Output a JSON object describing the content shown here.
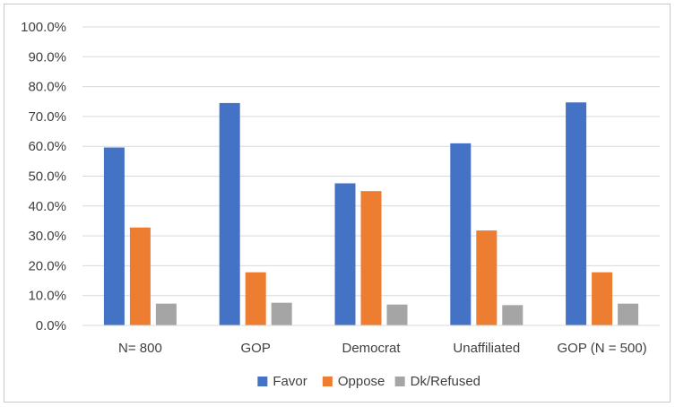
{
  "chart_data": {
    "type": "bar",
    "categories": [
      "N= 800",
      "GOP",
      "Democrat",
      "Unaffiliated",
      "GOP (N = 500)"
    ],
    "series": [
      {
        "name": "Favor",
        "color": "#4472c4",
        "values": [
          59.6,
          74.5,
          47.6,
          61.0,
          74.7
        ]
      },
      {
        "name": "Oppose",
        "color": "#ed7d31",
        "values": [
          32.8,
          17.8,
          45.0,
          31.8,
          17.8
        ]
      },
      {
        "name": "Dk/Refused",
        "color": "#a5a5a5",
        "values": [
          7.3,
          7.6,
          7.0,
          6.8,
          7.3
        ]
      }
    ],
    "y_ticks": [
      "0.0%",
      "10.0%",
      "20.0%",
      "30.0%",
      "40.0%",
      "50.0%",
      "60.0%",
      "70.0%",
      "80.0%",
      "90.0%",
      "100.0%"
    ],
    "ylim": [
      0,
      100
    ],
    "grid": true,
    "legend_position": "bottom",
    "title": "",
    "xlabel": "",
    "ylabel": ""
  }
}
